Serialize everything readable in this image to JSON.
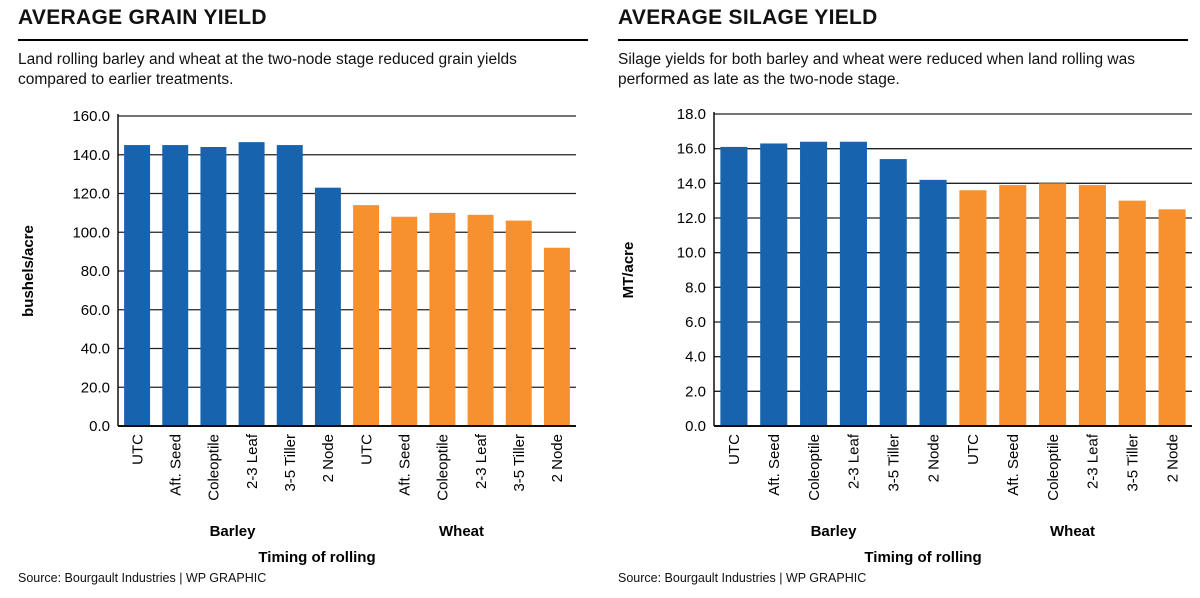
{
  "chart_data": [
    {
      "type": "bar",
      "title": "AVERAGE GRAIN YIELD",
      "subtitle": "Land rolling barley and wheat at the two-node stage reduced grain yields compared to earlier treatments.",
      "categories": [
        "UTC",
        "Aft. Seed",
        "Coleoptile",
        "2-3 Leaf",
        "3-5 Tiller",
        "2 Node",
        "UTC",
        "Aft. Seed",
        "Coleoptile",
        "2-3 Leaf",
        "3-5 Tiller",
        "2 Node"
      ],
      "groups": [
        "Barley",
        "Barley",
        "Barley",
        "Barley",
        "Barley",
        "Barley",
        "Wheat",
        "Wheat",
        "Wheat",
        "Wheat",
        "Wheat",
        "Wheat"
      ],
      "group_labels": [
        "Barley",
        "Wheat"
      ],
      "values": [
        145,
        145,
        144,
        146.5,
        145,
        123,
        114,
        108,
        110,
        109,
        106,
        92
      ],
      "ylabel": "bushels/acre",
      "xlabel": "Timing of rolling",
      "ylim": [
        0,
        160
      ],
      "yticks": [
        0,
        20,
        40,
        60,
        80,
        100,
        120,
        140,
        160
      ],
      "tick_decimals": 1,
      "grid": true,
      "legend": "none",
      "source": "Source: Bourgault Industries  |  WP GRAPHIC"
    },
    {
      "type": "bar",
      "title": "AVERAGE SILAGE YIELD",
      "subtitle": "Silage yields for both barley and wheat were reduced when land rolling was performed as late as the two-node stage.",
      "categories": [
        "UTC",
        "Aft. Seed",
        "Coleoptile",
        "2-3 Leaf",
        "3-5 Tiller",
        "2 Node",
        "UTC",
        "Aft. Seed",
        "Coleoptile",
        "2-3 Leaf",
        "3-5 Tiller",
        "2 Node"
      ],
      "groups": [
        "Barley",
        "Barley",
        "Barley",
        "Barley",
        "Barley",
        "Barley",
        "Wheat",
        "Wheat",
        "Wheat",
        "Wheat",
        "Wheat",
        "Wheat"
      ],
      "group_labels": [
        "Barley",
        "Wheat"
      ],
      "values": [
        16.1,
        16.3,
        16.4,
        16.4,
        15.4,
        14.2,
        13.6,
        13.9,
        14.0,
        13.9,
        13.0,
        12.5
      ],
      "ylabel": "MT/acre",
      "xlabel": "Timing of rolling",
      "ylim": [
        0,
        18
      ],
      "yticks": [
        0,
        2,
        4,
        6,
        8,
        10,
        12,
        14,
        16,
        18
      ],
      "tick_decimals": 1,
      "grid": true,
      "legend": "none",
      "source": "Source: Bourgault Industries  |  WP GRAPHIC"
    }
  ],
  "colors": {
    "Barley": "#1763ae",
    "Wheat": "#f7902e",
    "grid": "#222222",
    "axis": "#111111"
  }
}
